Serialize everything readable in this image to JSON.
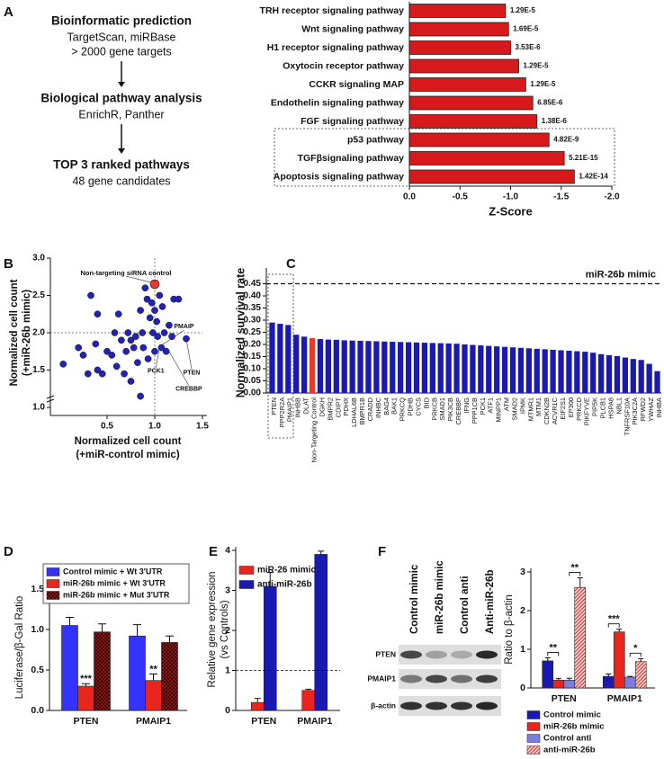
{
  "panel_labels": [
    "A",
    "B",
    "C",
    "D",
    "E",
    "F"
  ],
  "flowchart": {
    "steps": [
      {
        "title": "Bioinformatic prediction",
        "lines": [
          "TargetScan, miRBase",
          "> 2000 gene targets"
        ]
      },
      {
        "title": "Biological pathway analysis",
        "lines": [
          "EnrichR, Panther"
        ]
      },
      {
        "title": "TOP 3 ranked pathways",
        "lines": [
          "48 gene candidates"
        ]
      }
    ]
  },
  "blot": {
    "columns": [
      "Control mimic",
      "miR-26b mimic",
      "Control anti",
      "Anti-miR-26b"
    ],
    "rows": [
      "PTEN",
      "PMAIP1",
      "β-actin"
    ]
  },
  "chart_data": [
    {
      "type": "hbar",
      "categories": [
        "TRH receptor signaling pathway",
        "Wnt signaling pathway",
        "H1 receptor signaling pathway",
        "Oxytocin receptor pathway",
        "CCKR signaling MAP",
        "Endothelin signaling pathway",
        "FGF signaling pathway",
        "p53 pathway",
        "TGFβsignaling pathway",
        "Apoptosis signaling pathway"
      ],
      "values": [
        -0.95,
        -0.98,
        -1.0,
        -1.08,
        -1.15,
        -1.22,
        -1.26,
        -1.38,
        -1.53,
        -1.63
      ],
      "p_values": [
        "1.29E-5",
        "1.69E-5",
        "3.53E-6",
        "1.29E-5",
        "1.29E-5",
        "6.85E-6",
        "1.38E-6",
        "4.82E-9",
        "5.21E-15",
        "1.42E-14"
      ],
      "color": "#d7191c",
      "xlim": [
        0,
        -2
      ],
      "xticks": [
        {
          "value": 0,
          "label": "0.0"
        },
        -0.5,
        {
          "value": -1,
          "label": "-1.0"
        },
        -1.5,
        {
          "value": -2,
          "label": "-2.0"
        }
      ],
      "xlabel": "Z-Score"
    },
    {
      "type": "scatter",
      "x": [
        0.04,
        0.2,
        0.3,
        0.33,
        0.4,
        0.38,
        0.45,
        0.5,
        0.55,
        0.58,
        0.6,
        0.62,
        0.65,
        0.68,
        0.7,
        0.72,
        0.75,
        0.75,
        0.78,
        0.8,
        0.82,
        0.85,
        0.87,
        0.88,
        0.9,
        0.92,
        0.93,
        0.95,
        0.97,
        0.98,
        1.0,
        1.02,
        1.03,
        1.05,
        1.07,
        1.08,
        1.1,
        1.12,
        1.15,
        1.18,
        1.2,
        1.25,
        1.33,
        0.85,
        1.0,
        0.4,
        0.25
      ],
      "y": [
        1.58,
        1.8,
        1.45,
        2.5,
        2.25,
        1.85,
        1.45,
        1.75,
        1.7,
        2.0,
        1.55,
        2.25,
        1.9,
        1.45,
        1.75,
        2.0,
        1.35,
        1.9,
        1.8,
        1.95,
        1.6,
        2.3,
        2.0,
        1.8,
        2.6,
        2.45,
        1.65,
        2.2,
        2.4,
        2.0,
        2.3,
        2.15,
        1.95,
        2.5,
        1.8,
        2.35,
        2.0,
        1.75,
        2.1,
        1.95,
        2.45,
        2.45,
        1.92,
        1.15,
        1.75,
        1.5,
        1.7
      ],
      "color": "#2222b8",
      "highlight": {
        "x": 1.0,
        "y": 2.65,
        "label": "Non-targeting siRNA control",
        "color": "#e8392b"
      },
      "annotations": [
        {
          "text": "PMAIP",
          "x": 1.08,
          "y": 1.84
        },
        {
          "text": "PCK1",
          "x": 1.05,
          "y": 1.8
        },
        {
          "text": "CREBBP",
          "x": 1.15,
          "y": 1.75
        },
        {
          "text": "PTEN",
          "x": 1.33,
          "y": 1.92
        }
      ],
      "reference_lines": {
        "x": 1,
        "y": 2
      },
      "xlim": [
        0,
        1.5
      ],
      "ylim": [
        1,
        3
      ],
      "xticks": [
        0.5,
        {
          "value": 1,
          "label": "1.0"
        },
        1.5
      ],
      "yticks": [
        {
          "value": 1,
          "label": "1.0"
        },
        1.5,
        {
          "value": 2,
          "label": "2.0"
        },
        2.5,
        {
          "value": 3,
          "label": "3.0"
        }
      ],
      "xlabel": [
        "Normalized cell count",
        "(+miR-control mimic)"
      ],
      "ylabel": [
        "Normalized cell count",
        "(+miR-26b mimic)"
      ]
    },
    {
      "type": "bar",
      "categories": [
        "PTEN",
        "PPP2R2A",
        "PMAIP1",
        "INHBB",
        "DLAT",
        "Non-Targeting Control",
        "DGKH",
        "BMPR2",
        "CDIPT",
        "PDHX",
        "LDHAL6B",
        "BMPR1B",
        "CRADD",
        "INHBC",
        "BAG4",
        "BAK1",
        "PRKCQ",
        "PDHB",
        "CYCS",
        "BID",
        "PRKCB",
        "SMAD1",
        "PIK3CB",
        "CREBBP",
        "IFNG",
        "PPP1CB",
        "PCK1",
        "ATF1",
        "MINPP1",
        "ATM",
        "SMAD2",
        "IPMK",
        "MTMR1",
        "MTM1",
        "CDKN2B",
        "ACVR1C",
        "EIF2S1",
        "EP300",
        "PRKCD",
        "PIKFYVE",
        "PIP5K",
        "PLCB1",
        "HSPA8",
        "NBL1",
        "TNFRSF10A",
        "PIK3C2A",
        "RFWD2",
        "YWHAZ",
        "INHBA"
      ],
      "values": [
        0.29,
        0.285,
        0.28,
        0.24,
        0.232,
        0.226,
        0.222,
        0.22,
        0.219,
        0.217,
        0.216,
        0.215,
        0.214,
        0.213,
        0.212,
        0.211,
        0.21,
        0.209,
        0.208,
        0.207,
        0.206,
        0.205,
        0.204,
        0.203,
        0.2,
        0.198,
        0.196,
        0.194,
        0.192,
        0.19,
        0.188,
        0.186,
        0.184,
        0.182,
        0.18,
        0.178,
        0.176,
        0.174,
        0.172,
        0.17,
        0.166,
        0.16,
        0.156,
        0.152,
        0.146,
        0.14,
        0.136,
        0.12,
        0.09
      ],
      "colors": [
        "#1a1ab3",
        "#1a1ab3",
        "#1a1ab3",
        "#1a1ab3",
        "#1a1ab3",
        "#e8392b",
        "#1a1ab3",
        "#1a1ab3",
        "#1a1ab3",
        "#1a1ab3",
        "#1a1ab3",
        "#1a1ab3",
        "#1a1ab3",
        "#1a1ab3",
        "#1a1ab3",
        "#1a1ab3",
        "#1a1ab3",
        "#1a1ab3",
        "#1a1ab3",
        "#1a1ab3",
        "#1a1ab3",
        "#1a1ab3",
        "#1a1ab3",
        "#1a1ab3",
        "#1a1ab3",
        "#1a1ab3",
        "#1a1ab3",
        "#1a1ab3",
        "#1a1ab3",
        "#1a1ab3",
        "#1a1ab3",
        "#1a1ab3",
        "#1a1ab3",
        "#1a1ab3",
        "#1a1ab3",
        "#1a1ab3",
        "#1a1ab3",
        "#1a1ab3",
        "#1a1ab3",
        "#1a1ab3",
        "#1a1ab3",
        "#1a1ab3",
        "#1a1ab3",
        "#1a1ab3",
        "#1a1ab3",
        "#1a1ab3",
        "#1a1ab3",
        "#1a1ab3",
        "#1a1ab3"
      ],
      "reference_line": {
        "y": 0.45,
        "label": "miR-26b mimic"
      },
      "ylim": [
        0,
        0.5
      ],
      "yticks": [
        {
          "value": 0,
          "label": "0.00"
        },
        0.05,
        {
          "value": 0.1,
          "label": "0.10"
        },
        0.15,
        {
          "value": 0.2,
          "label": "0.20"
        },
        0.25,
        {
          "value": 0.3,
          "label": "0.30"
        },
        0.35,
        {
          "value": 0.4,
          "label": "0.40"
        },
        0.45
      ],
      "ylabel": "Normalized survival rate"
    },
    {
      "type": "grouped_bar",
      "categories": [
        "PTEN",
        "PMAIP1"
      ],
      "series": [
        {
          "name": "Control mimic + Wt 3'UTR",
          "color": "#3333ff",
          "values": [
            1.05,
            0.92
          ],
          "errors": [
            0.1,
            0.14
          ]
        },
        {
          "name": "miR-26b mimic + Wt 3'UTR",
          "color": "#e8261e",
          "values": [
            0.3,
            0.37
          ],
          "errors": [
            0.03,
            0.08
          ]
        },
        {
          "name": "miR-26b mimic + Mut 3'UTR",
          "color": "#8b1414",
          "pattern": "checker",
          "values": [
            0.97,
            0.84
          ],
          "errors": [
            0.1,
            0.08
          ]
        }
      ],
      "significance": [
        {
          "category": "PTEN",
          "series": "miR-26b mimic + Wt 3'UTR",
          "label": "***"
        },
        {
          "category": "PMAIP1",
          "series": "miR-26b mimic + Wt 3'UTR",
          "label": "**"
        }
      ],
      "ylim": [
        0,
        1.5
      ],
      "yticks": [
        {
          "value": 0,
          "label": "0.0"
        },
        0.5,
        {
          "value": 1,
          "label": "1.0"
        },
        1.5
      ],
      "ylabel": "Luciferase/β-Gal Ratio"
    },
    {
      "type": "grouped_bar",
      "categories": [
        "PTEN",
        "PMAIP1"
      ],
      "series": [
        {
          "name": "miR-26 mimic",
          "color": "#e8261e",
          "values": [
            0.2,
            0.5
          ],
          "errors": [
            0.1,
            0.03
          ]
        },
        {
          "name": "anti-miR-26b",
          "color": "#1a1ab3",
          "values": [
            3.1,
            3.9
          ],
          "errors": [
            0.35,
            0.08
          ]
        }
      ],
      "reference_line": {
        "y": 1
      },
      "ylim": [
        0,
        4
      ],
      "yticks": [
        0,
        1,
        2,
        3,
        4
      ],
      "ylabel": [
        "Relative gene expression",
        "(vs Controls)"
      ]
    },
    {
      "type": "grouped_bar",
      "categories": [
        "PTEN",
        "PMAIP1"
      ],
      "series": [
        {
          "name": "Control mimic",
          "color": "#1a1ab3",
          "values": [
            0.7,
            0.3
          ],
          "errors": [
            0.08,
            0.06
          ]
        },
        {
          "name": "miR-26b mimic",
          "color": "#e8261e",
          "values": [
            0.2,
            1.45
          ],
          "errors": [
            0.04,
            0.07
          ]
        },
        {
          "name": "Control anti",
          "color": "#7d7de0",
          "values": [
            0.2,
            0.28
          ],
          "errors": [
            0.05,
            0.02
          ]
        },
        {
          "name": "anti-miR-26b",
          "color": "#e8261e",
          "pattern": "hatch",
          "values": [
            2.6,
            0.68
          ],
          "errors": [
            0.25,
            0.08
          ]
        }
      ],
      "brackets": [
        {
          "category": "PTEN",
          "between": [
            "Control mimic",
            "miR-26b mimic"
          ],
          "label": "**"
        },
        {
          "category": "PTEN",
          "between": [
            "Control anti",
            "anti-miR-26b"
          ],
          "label": "**"
        },
        {
          "category": "PMAIP1",
          "between": [
            "Control mimic",
            "miR-26b mimic"
          ],
          "label": "***"
        },
        {
          "category": "PMAIP1",
          "between": [
            "Control anti",
            "anti-miR-26b"
          ],
          "label": "*"
        }
      ],
      "ylim": [
        0,
        3
      ],
      "yticks": [
        0,
        1,
        2,
        3
      ],
      "ylabel": "Ratio to β-actin"
    }
  ]
}
